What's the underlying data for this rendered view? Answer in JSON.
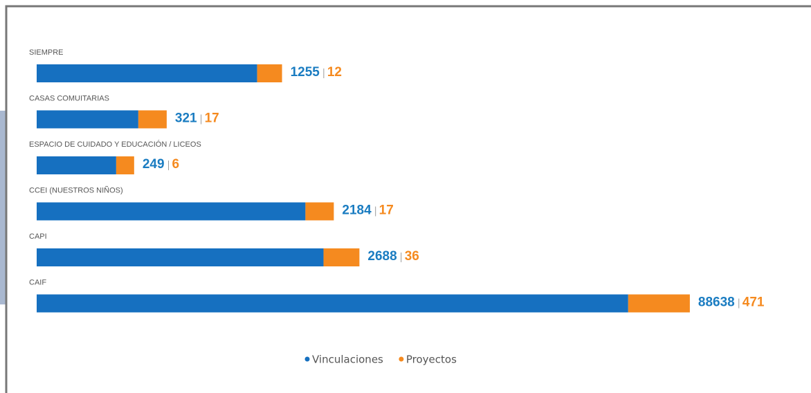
{
  "chart_data": {
    "type": "bar",
    "orientation": "horizontal",
    "stacked": true,
    "categories": [
      "SIEMPRE",
      "CASAS COMUITARIAS",
      "ESPACIO DE CUIDADO Y EDUCACIÓN / LICEOS",
      "CCEI (NUESTROS NIÑOS)",
      "CAPI",
      "CAIF"
    ],
    "series": [
      {
        "name": "Vinculaciones",
        "color": "#1670c0",
        "values": [
          1255,
          321,
          249,
          2184,
          2688,
          88638
        ]
      },
      {
        "name": "Proyectos",
        "color": "#f58a1f",
        "axis": "x2",
        "values": [
          12,
          17,
          6,
          17,
          36,
          471
        ]
      }
    ],
    "xlim": [
      100,
      100000
    ],
    "x_log": true,
    "x2lim": [
      1,
      1000
    ],
    "x2_log": true,
    "legend": "bottom"
  }
}
